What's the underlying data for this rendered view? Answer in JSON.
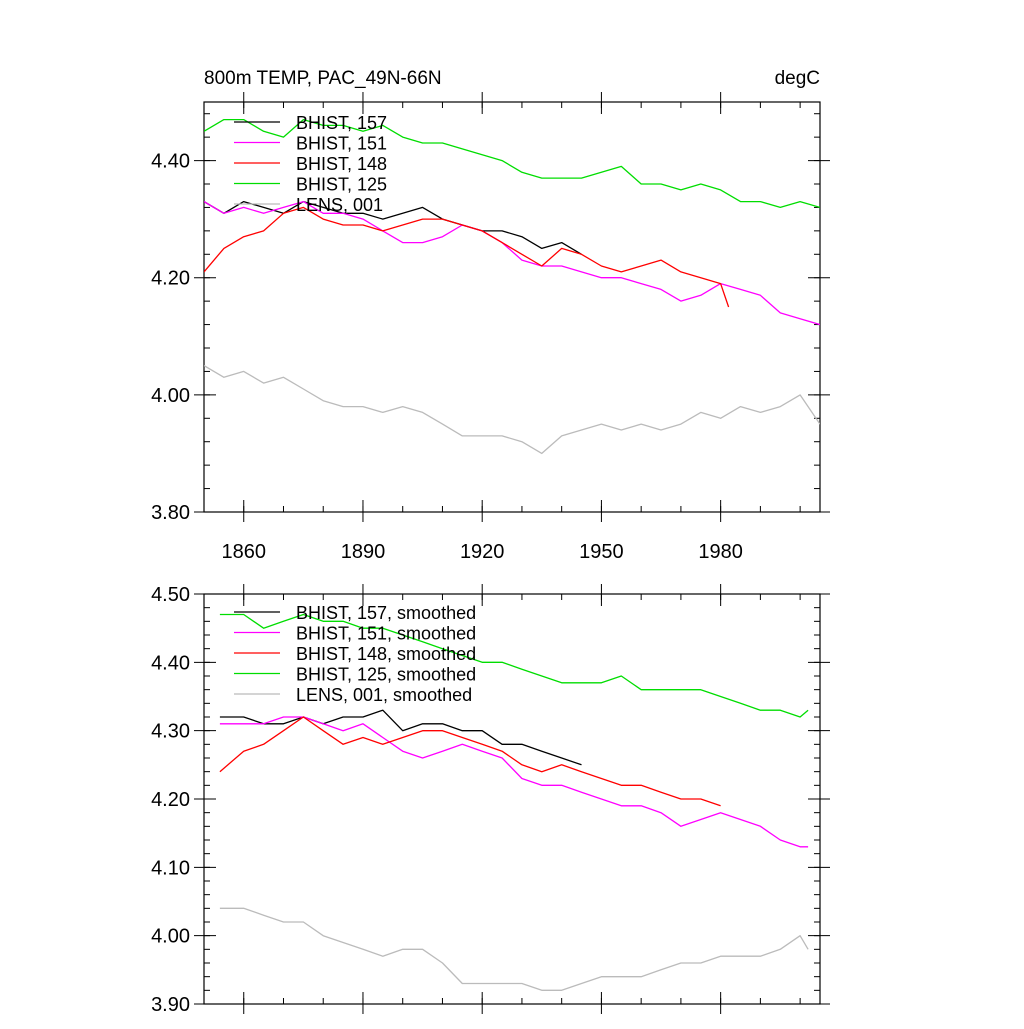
{
  "chart_data": [
    {
      "type": "line",
      "title": "800m TEMP, PAC_49N-66N",
      "units": "degC",
      "xlabel": "",
      "ylabel": "",
      "xlim": [
        1850,
        2005
      ],
      "ylim": [
        3.8,
        4.5
      ],
      "xticks": [
        1860,
        1890,
        1920,
        1950,
        1980
      ],
      "xtick_labels": [
        "1860",
        "1890",
        "1920",
        "1950",
        "1980"
      ],
      "yticks": [
        3.8,
        4.0,
        4.2,
        4.4
      ],
      "ytick_labels": [
        "3.80",
        "4.00",
        "4.20",
        "4.40"
      ],
      "grid": false,
      "legend_position": "top-left",
      "series": [
        {
          "name": "BHIST, 157",
          "color": "#000000",
          "x": [
            1850,
            1855,
            1860,
            1865,
            1870,
            1875,
            1880,
            1885,
            1890,
            1895,
            1900,
            1905,
            1910,
            1915,
            1920,
            1925,
            1930,
            1935,
            1940,
            1945
          ],
          "y": [
            4.33,
            4.31,
            4.33,
            4.32,
            4.31,
            4.33,
            4.32,
            4.31,
            4.31,
            4.3,
            4.31,
            4.32,
            4.3,
            4.29,
            4.28,
            4.28,
            4.27,
            4.25,
            4.26,
            4.24
          ]
        },
        {
          "name": "BHIST, 151",
          "color": "#ff00ff",
          "x": [
            1850,
            1855,
            1860,
            1865,
            1870,
            1875,
            1880,
            1885,
            1890,
            1895,
            1900,
            1905,
            1910,
            1915,
            1920,
            1925,
            1930,
            1935,
            1940,
            1945,
            1950,
            1955,
            1960,
            1965,
            1970,
            1975,
            1980,
            1985,
            1990,
            1995,
            2000,
            2005
          ],
          "y": [
            4.33,
            4.31,
            4.32,
            4.31,
            4.32,
            4.33,
            4.31,
            4.31,
            4.3,
            4.28,
            4.26,
            4.26,
            4.27,
            4.29,
            4.28,
            4.26,
            4.23,
            4.22,
            4.22,
            4.21,
            4.2,
            4.2,
            4.19,
            4.18,
            4.16,
            4.17,
            4.19,
            4.18,
            4.17,
            4.14,
            4.13,
            4.12
          ]
        },
        {
          "name": "BHIST, 148",
          "color": "#ff0000",
          "x": [
            1850,
            1855,
            1860,
            1865,
            1870,
            1875,
            1880,
            1885,
            1890,
            1895,
            1900,
            1905,
            1910,
            1915,
            1920,
            1925,
            1930,
            1935,
            1940,
            1945,
            1950,
            1955,
            1960,
            1965,
            1970,
            1975,
            1980,
            1982
          ],
          "y": [
            4.21,
            4.25,
            4.27,
            4.28,
            4.31,
            4.32,
            4.3,
            4.29,
            4.29,
            4.28,
            4.29,
            4.3,
            4.3,
            4.29,
            4.28,
            4.26,
            4.24,
            4.22,
            4.25,
            4.24,
            4.22,
            4.21,
            4.22,
            4.23,
            4.21,
            4.2,
            4.19,
            4.15
          ]
        },
        {
          "name": "BHIST, 125",
          "color": "#00dd00",
          "x": [
            1850,
            1855,
            1860,
            1865,
            1870,
            1875,
            1880,
            1885,
            1890,
            1895,
            1900,
            1905,
            1910,
            1915,
            1920,
            1925,
            1930,
            1935,
            1940,
            1945,
            1950,
            1955,
            1960,
            1965,
            1970,
            1975,
            1980,
            1985,
            1990,
            1995,
            2000,
            2005
          ],
          "y": [
            4.45,
            4.47,
            4.47,
            4.45,
            4.44,
            4.47,
            4.46,
            4.46,
            4.45,
            4.46,
            4.44,
            4.43,
            4.43,
            4.42,
            4.41,
            4.4,
            4.38,
            4.37,
            4.37,
            4.37,
            4.38,
            4.39,
            4.36,
            4.36,
            4.35,
            4.36,
            4.35,
            4.33,
            4.33,
            4.32,
            4.33,
            4.32
          ]
        },
        {
          "name": "LENS, 001",
          "color": "#bbbbbb",
          "x": [
            1850,
            1855,
            1860,
            1865,
            1870,
            1875,
            1880,
            1885,
            1890,
            1895,
            1900,
            1905,
            1910,
            1915,
            1920,
            1925,
            1930,
            1935,
            1940,
            1945,
            1950,
            1955,
            1960,
            1965,
            1970,
            1975,
            1980,
            1985,
            1990,
            1995,
            2000,
            2005
          ],
          "y": [
            4.05,
            4.03,
            4.04,
            4.02,
            4.03,
            4.01,
            3.99,
            3.98,
            3.98,
            3.97,
            3.98,
            3.97,
            3.95,
            3.93,
            3.93,
            3.93,
            3.92,
            3.9,
            3.93,
            3.94,
            3.95,
            3.94,
            3.95,
            3.94,
            3.95,
            3.97,
            3.96,
            3.98,
            3.97,
            3.98,
            4.0,
            3.95
          ]
        }
      ]
    },
    {
      "type": "line",
      "title": "",
      "xlabel": "",
      "ylabel": "",
      "xlim": [
        1850,
        2005
      ],
      "ylim": [
        3.9,
        4.5
      ],
      "xticks": [
        1860,
        1890,
        1920,
        1950,
        1980
      ],
      "yticks": [
        3.9,
        4.0,
        4.1,
        4.2,
        4.3,
        4.4,
        4.5
      ],
      "ytick_labels": [
        "3.90",
        "4.00",
        "4.10",
        "4.20",
        "4.30",
        "4.40",
        "4.50"
      ],
      "grid": false,
      "legend_position": "top-left",
      "series": [
        {
          "name": "BHIST, 157, smoothed",
          "color": "#000000",
          "x": [
            1854,
            1860,
            1865,
            1870,
            1875,
            1880,
            1885,
            1890,
            1895,
            1900,
            1905,
            1910,
            1915,
            1920,
            1925,
            1930,
            1935,
            1940,
            1945
          ],
          "y": [
            4.32,
            4.32,
            4.31,
            4.31,
            4.32,
            4.31,
            4.32,
            4.32,
            4.33,
            4.3,
            4.31,
            4.31,
            4.3,
            4.3,
            4.28,
            4.28,
            4.27,
            4.26,
            4.25
          ]
        },
        {
          "name": "BHIST, 151, smoothed",
          "color": "#ff00ff",
          "x": [
            1854,
            1860,
            1865,
            1870,
            1875,
            1880,
            1885,
            1890,
            1895,
            1900,
            1905,
            1910,
            1915,
            1920,
            1925,
            1930,
            1935,
            1940,
            1945,
            1950,
            1955,
            1960,
            1965,
            1970,
            1975,
            1980,
            1985,
            1990,
            1995,
            2000,
            2002
          ],
          "y": [
            4.31,
            4.31,
            4.31,
            4.32,
            4.32,
            4.31,
            4.3,
            4.31,
            4.29,
            4.27,
            4.26,
            4.27,
            4.28,
            4.27,
            4.26,
            4.23,
            4.22,
            4.22,
            4.21,
            4.2,
            4.19,
            4.19,
            4.18,
            4.16,
            4.17,
            4.18,
            4.17,
            4.16,
            4.14,
            4.13,
            4.13
          ]
        },
        {
          "name": "BHIST, 148, smoothed",
          "color": "#ff0000",
          "x": [
            1854,
            1860,
            1865,
            1870,
            1875,
            1880,
            1885,
            1890,
            1895,
            1900,
            1905,
            1910,
            1915,
            1920,
            1925,
            1930,
            1935,
            1940,
            1945,
            1950,
            1955,
            1960,
            1965,
            1970,
            1975,
            1980
          ],
          "y": [
            4.24,
            4.27,
            4.28,
            4.3,
            4.32,
            4.3,
            4.28,
            4.29,
            4.28,
            4.29,
            4.3,
            4.3,
            4.29,
            4.28,
            4.27,
            4.25,
            4.24,
            4.25,
            4.24,
            4.23,
            4.22,
            4.22,
            4.21,
            4.2,
            4.2,
            4.19
          ]
        },
        {
          "name": "BHIST, 125, smoothed",
          "color": "#00dd00",
          "x": [
            1854,
            1860,
            1865,
            1870,
            1875,
            1880,
            1885,
            1890,
            1895,
            1900,
            1905,
            1910,
            1915,
            1920,
            1925,
            1930,
            1935,
            1940,
            1945,
            1950,
            1955,
            1960,
            1965,
            1970,
            1975,
            1980,
            1985,
            1990,
            1995,
            2000,
            2002
          ],
          "y": [
            4.47,
            4.47,
            4.45,
            4.46,
            4.47,
            4.46,
            4.46,
            4.45,
            4.45,
            4.44,
            4.43,
            4.42,
            4.41,
            4.4,
            4.4,
            4.39,
            4.38,
            4.37,
            4.37,
            4.37,
            4.38,
            4.36,
            4.36,
            4.36,
            4.36,
            4.35,
            4.34,
            4.33,
            4.33,
            4.32,
            4.33
          ]
        },
        {
          "name": "LENS, 001, smoothed",
          "color": "#bbbbbb",
          "x": [
            1854,
            1860,
            1865,
            1870,
            1875,
            1880,
            1885,
            1890,
            1895,
            1900,
            1905,
            1910,
            1915,
            1920,
            1925,
            1930,
            1935,
            1940,
            1945,
            1950,
            1955,
            1960,
            1965,
            1970,
            1975,
            1980,
            1985,
            1990,
            1995,
            2000,
            2002
          ],
          "y": [
            4.04,
            4.04,
            4.03,
            4.02,
            4.02,
            4.0,
            3.99,
            3.98,
            3.97,
            3.98,
            3.98,
            3.96,
            3.93,
            3.93,
            3.93,
            3.93,
            3.92,
            3.92,
            3.93,
            3.94,
            3.94,
            3.94,
            3.95,
            3.96,
            3.96,
            3.97,
            3.97,
            3.97,
            3.98,
            4.0,
            3.98
          ]
        }
      ]
    }
  ]
}
